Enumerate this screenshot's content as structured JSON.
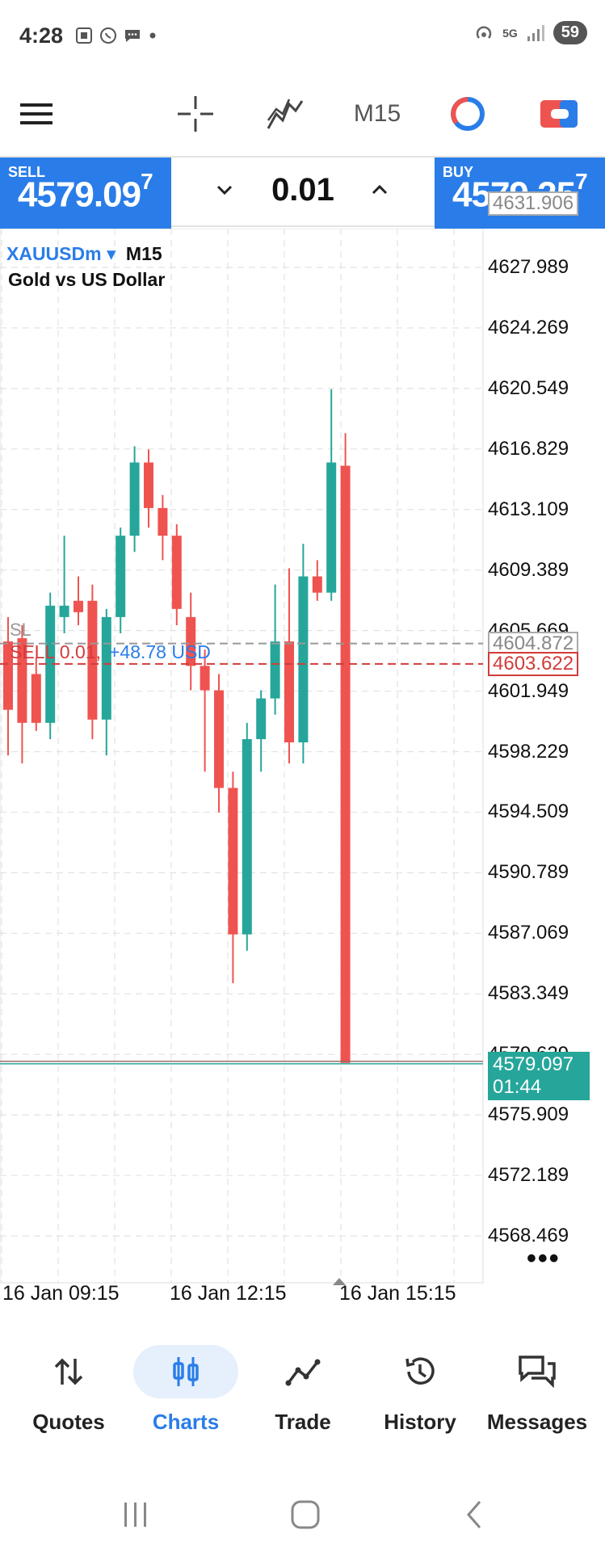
{
  "status_bar": {
    "time": "4:28",
    "battery": "59",
    "network": "5G"
  },
  "toolbar": {
    "timeframe": "M15"
  },
  "trade_panel": {
    "sell_label": "SELL",
    "sell_price_main": "4579.09",
    "sell_price_sup": "7",
    "buy_label": "BUY",
    "buy_price_main": "4579.25",
    "buy_price_sup": "7",
    "volume": "0.01"
  },
  "chart": {
    "symbol": "XAUUSDm",
    "symbol_arrow": "▾",
    "timeframe": "M15",
    "description": "Gold vs US Dollar",
    "high_marker": "4631.906",
    "sl_label": "SL",
    "order_label": "SELL 0.01,",
    "order_profit": "+48.78 USD",
    "sl_price": "4604.872",
    "order_price": "4603.622",
    "current_price": "4579.097",
    "countdown": "01:44",
    "more": "•••",
    "price_ticks": [
      "4627.989",
      "4624.269",
      "4620.549",
      "4616.829",
      "4613.109",
      "4609.389",
      "4605.669",
      "4601.949",
      "4598.229",
      "4594.509",
      "4590.789",
      "4587.069",
      "4583.349",
      "4579.629",
      "4575.909",
      "4572.189",
      "4568.469"
    ],
    "time_labels": [
      "16 Jan 09:15",
      "16 Jan 12:15",
      "16 Jan 15:15"
    ],
    "colors": {
      "up": "#26a69a",
      "down": "#ef5350",
      "accent": "#2a7de8",
      "order": "#d23b3b"
    }
  },
  "chart_data": {
    "type": "candlestick",
    "symbol": "XAUUSDm",
    "ylim": [
      4566.5,
      4634.0
    ],
    "grid": true,
    "candles": [
      {
        "o": 4605.0,
        "h": 4606.5,
        "l": 4598.0,
        "c": 4600.8
      },
      {
        "o": 4605.2,
        "h": 4606.0,
        "l": 4597.5,
        "c": 4600.0
      },
      {
        "o": 4603.0,
        "h": 4604.0,
        "l": 4599.5,
        "c": 4600.0
      },
      {
        "o": 4600.0,
        "h": 4608.0,
        "l": 4599.0,
        "c": 4607.2
      },
      {
        "o": 4606.5,
        "h": 4611.5,
        "l": 4605.5,
        "c": 4607.2
      },
      {
        "o": 4607.5,
        "h": 4609.0,
        "l": 4606.0,
        "c": 4606.8
      },
      {
        "o": 4607.5,
        "h": 4608.5,
        "l": 4599.0,
        "c": 4600.2
      },
      {
        "o": 4600.2,
        "h": 4607.0,
        "l": 4598.0,
        "c": 4606.5
      },
      {
        "o": 4606.5,
        "h": 4612.0,
        "l": 4605.5,
        "c": 4611.5
      },
      {
        "o": 4611.5,
        "h": 4617.0,
        "l": 4610.5,
        "c": 4616.0
      },
      {
        "o": 4616.0,
        "h": 4616.8,
        "l": 4612.0,
        "c": 4613.2
      },
      {
        "o": 4613.2,
        "h": 4614.0,
        "l": 4610.0,
        "c": 4611.5
      },
      {
        "o": 4611.5,
        "h": 4612.2,
        "l": 4606.0,
        "c": 4607.0
      },
      {
        "o": 4606.5,
        "h": 4608.0,
        "l": 4602.0,
        "c": 4603.5
      },
      {
        "o": 4603.5,
        "h": 4604.5,
        "l": 4597.0,
        "c": 4602.0
      },
      {
        "o": 4602.0,
        "h": 4603.0,
        "l": 4594.5,
        "c": 4596.0
      },
      {
        "o": 4596.0,
        "h": 4597.0,
        "l": 4584.0,
        "c": 4587.0
      },
      {
        "o": 4587.0,
        "h": 4600.0,
        "l": 4586.0,
        "c": 4599.0
      },
      {
        "o": 4599.0,
        "h": 4602.0,
        "l": 4597.0,
        "c": 4601.5
      },
      {
        "o": 4601.5,
        "h": 4608.5,
        "l": 4600.5,
        "c": 4605.0
      },
      {
        "o": 4605.0,
        "h": 4609.5,
        "l": 4597.5,
        "c": 4598.8
      },
      {
        "o": 4598.8,
        "h": 4611.0,
        "l": 4597.5,
        "c": 4609.0
      },
      {
        "o": 4609.0,
        "h": 4610.0,
        "l": 4607.5,
        "c": 4608.0
      },
      {
        "o": 4608.0,
        "h": 4620.5,
        "l": 4607.5,
        "c": 4616.0
      },
      {
        "o": 4615.8,
        "h": 4617.8,
        "l": 4579.2,
        "c": 4579.1
      }
    ]
  }
}
